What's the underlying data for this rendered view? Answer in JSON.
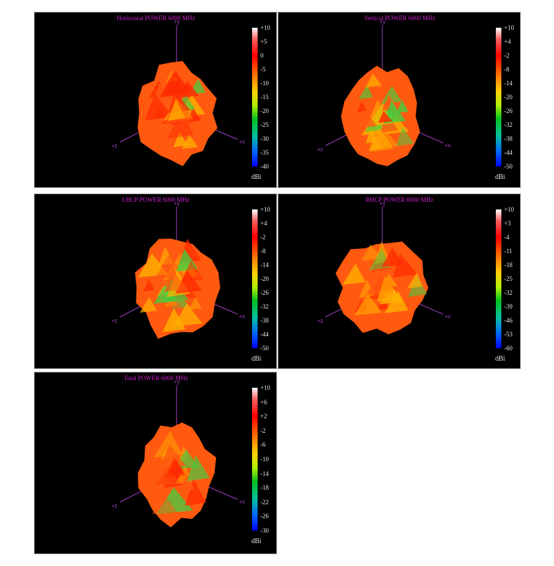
{
  "chart_data": [
    {
      "type": "heatmap",
      "title": "Horizontal POWER 6000  MHz",
      "colorbar_ticks": [
        "+10",
        "+5",
        "0",
        "-5",
        "-10",
        "-15",
        "-20",
        "-25",
        "-30",
        "-35",
        "-40"
      ],
      "unit": "dBi",
      "range": [
        -40,
        10
      ],
      "axis_labels": {
        "up": "+y",
        "right": "+x",
        "left": "+z"
      }
    },
    {
      "type": "heatmap",
      "title": "Vertical POWER 6000  MHz",
      "colorbar_ticks": [
        "+10",
        "+4",
        "-2",
        "-8",
        "-14",
        "-20",
        "-26",
        "-32",
        "-38",
        "-44",
        "-50"
      ],
      "unit": "dBi",
      "range": [
        -50,
        10
      ],
      "axis_labels": {
        "up": "+y",
        "right": "+x",
        "left": "+z"
      }
    },
    {
      "type": "heatmap",
      "title": "LHCP POWER 6000  MHz",
      "colorbar_ticks": [
        "+10",
        "+4",
        "-2",
        "-8",
        "-14",
        "-20",
        "-26",
        "-32",
        "-38",
        "-44",
        "-50"
      ],
      "unit": "dBi",
      "range": [
        -50,
        10
      ],
      "axis_labels": {
        "up": "+y",
        "right": "+x",
        "left": "+z"
      }
    },
    {
      "type": "heatmap",
      "title": "RHCP POWER 6000  MHz",
      "colorbar_ticks": [
        "+10",
        "+3",
        "-4",
        "-11",
        "-18",
        "-25",
        "-32",
        "-39",
        "-46",
        "-53",
        "-60"
      ],
      "unit": "dBi",
      "range": [
        -60,
        10
      ],
      "axis_labels": {
        "up": "+y",
        "right": "+x",
        "left": "+z"
      }
    },
    {
      "type": "heatmap",
      "title": "Total POWER 6000  MHz",
      "colorbar_ticks": [
        "+10",
        "+6",
        "+2",
        "-2",
        "-6",
        "-10",
        "-14",
        "-18",
        "-22",
        "-26",
        "-30"
      ],
      "unit": "dBi",
      "range": [
        -30,
        10
      ],
      "axis_labels": {
        "up": "+y",
        "right": "+x",
        "left": "+z"
      }
    }
  ],
  "colors": {
    "background": "#000000",
    "title": "#d020d0",
    "axis": "#a040c0",
    "surface_main": "#ff5a10",
    "surface_hot": "#ff2a00",
    "surface_warm": "#ffb000",
    "surface_cool": "#40d040"
  }
}
